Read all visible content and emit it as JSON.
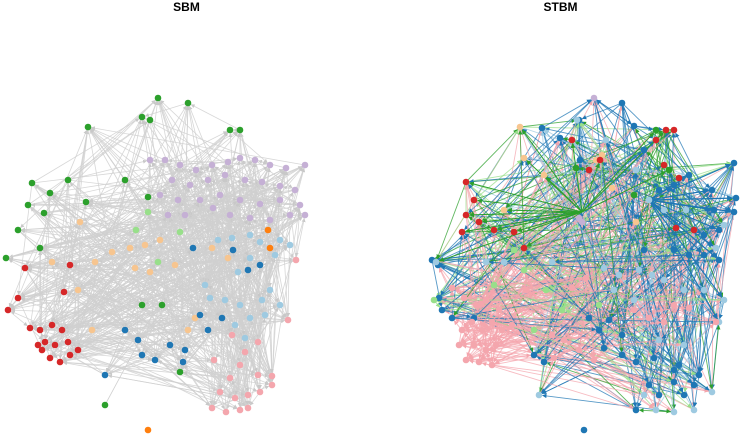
{
  "panels": [
    {
      "title": "SBM",
      "edge_style": "uniform gray"
    },
    {
      "title": "STBM",
      "edge_style": "colored by topic"
    }
  ],
  "colors": {
    "red": "#d62728",
    "green": "#2ca02c",
    "lavender": "#c5b0d5",
    "light_green": "#98df8a",
    "dark_blue": "#1f77b4",
    "light_blue": "#9ecae1",
    "peach": "#f7c58f",
    "orange": "#ff7f0e",
    "pink": "#f4a6ad",
    "gray_edge": "#d0d0d0"
  },
  "clusters": [
    {
      "name": "red",
      "color_key": "red"
    },
    {
      "name": "green",
      "color_key": "green"
    },
    {
      "name": "lavender",
      "color_key": "lavender"
    },
    {
      "name": "light-green",
      "color_key": "light_green"
    },
    {
      "name": "dark-blue",
      "color_key": "dark_blue"
    },
    {
      "name": "light-blue",
      "color_key": "light_blue"
    },
    {
      "name": "peach",
      "color_key": "peach"
    },
    {
      "name": "orange",
      "color_key": "orange"
    },
    {
      "name": "pink",
      "color_key": "pink"
    }
  ]
}
